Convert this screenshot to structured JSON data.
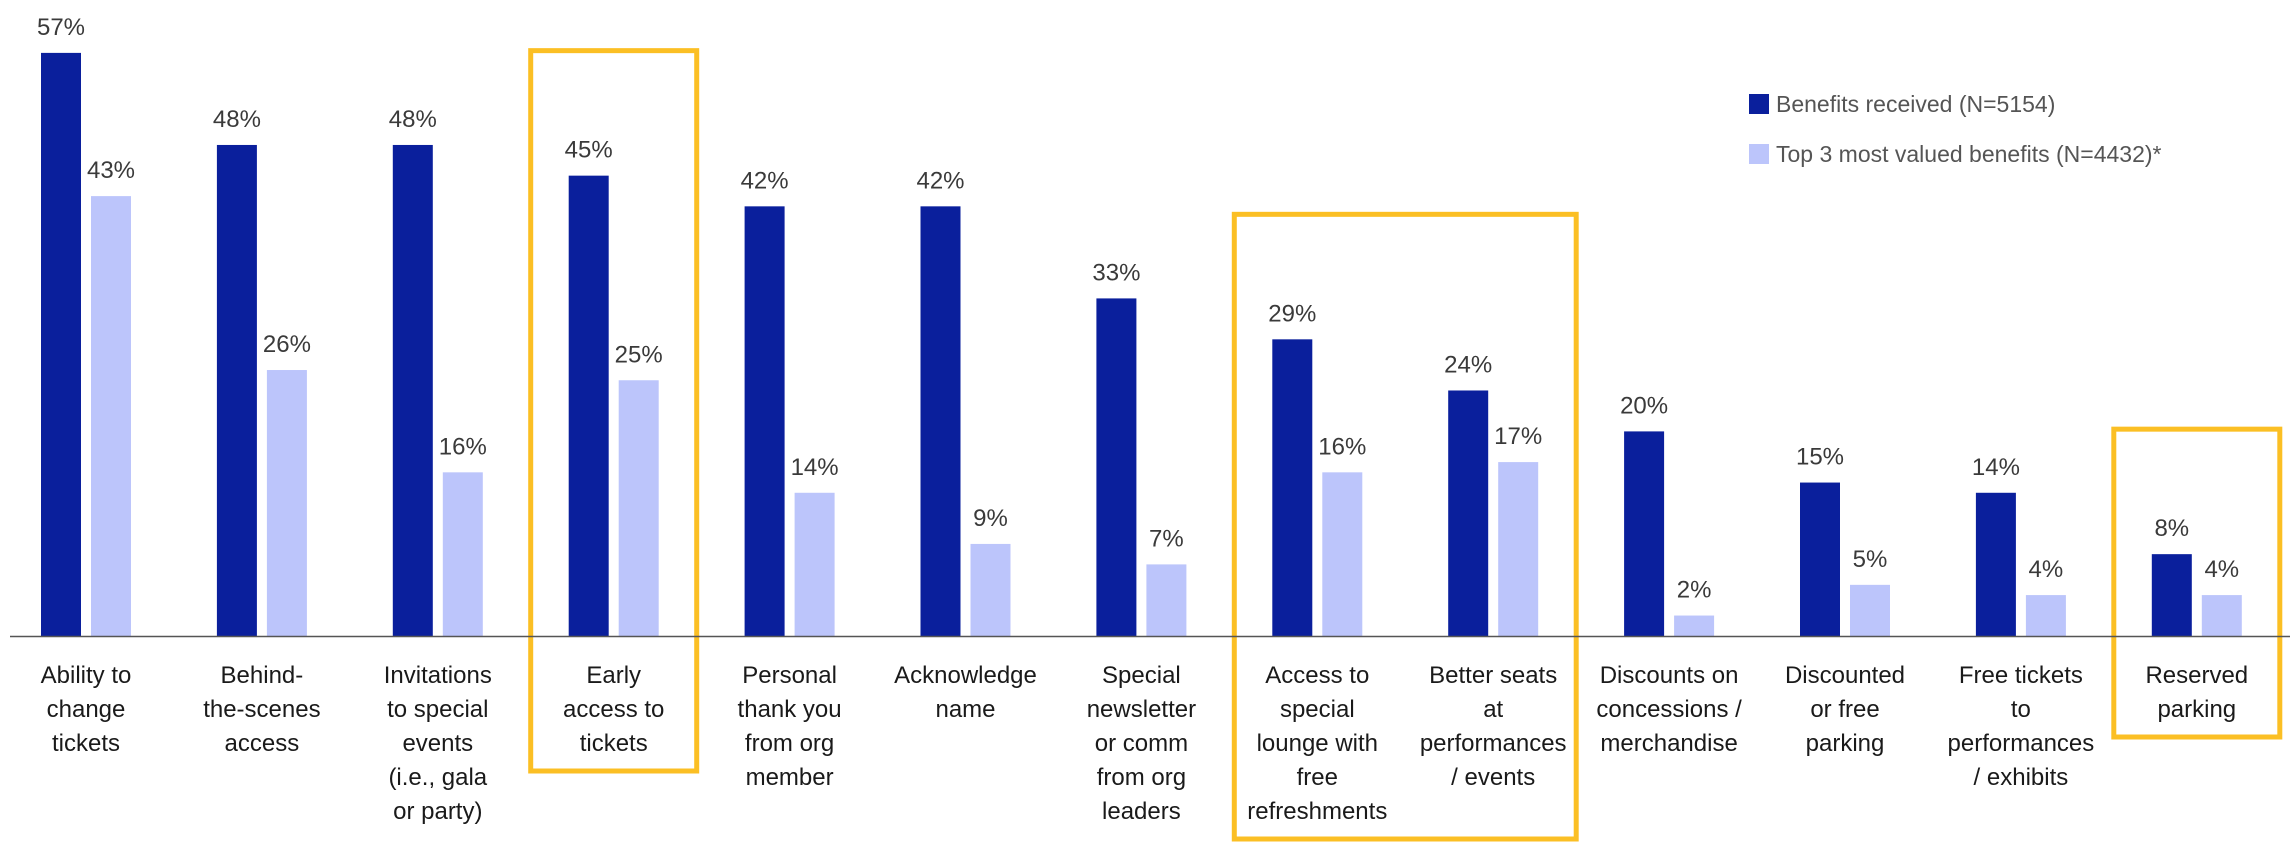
{
  "chart_data": {
    "type": "bar",
    "categories": [
      [
        "Ability to",
        "change",
        "tickets"
      ],
      [
        "Behind-",
        "the-scenes",
        "access"
      ],
      [
        "Invitations",
        "to special",
        "events",
        "(i.e., gala",
        "or party)"
      ],
      [
        "Early",
        "access to",
        "tickets"
      ],
      [
        "Personal",
        "thank you",
        "from org",
        "member"
      ],
      [
        "Acknowledge",
        "name"
      ],
      [
        "Special",
        "newsletter",
        "or comm",
        "from org",
        "leaders"
      ],
      [
        "Access to",
        "special",
        "lounge with",
        "free",
        "refreshments"
      ],
      [
        "Better seats",
        "at",
        "performances",
        "/ events"
      ],
      [
        "Discounts on",
        "concessions /",
        "merchandise"
      ],
      [
        "Discounted",
        "or free",
        "parking"
      ],
      [
        "Free tickets",
        "to",
        "performances",
        "/ exhibits"
      ],
      [
        "Reserved",
        "parking"
      ]
    ],
    "series": [
      {
        "name": "Benefits received (N=5154)",
        "color": "#0a1f9c",
        "values": [
          57,
          48,
          48,
          45,
          42,
          42,
          33,
          29,
          24,
          20,
          15,
          14,
          8
        ],
        "labels": [
          "57%",
          "48%",
          "48%",
          "45%",
          "42%",
          "42%",
          "33%",
          "29%",
          "24%",
          "20%",
          "15%",
          "14%",
          "8%"
        ]
      },
      {
        "name": "Top 3 most valued benefits (N=4432)*",
        "color": "#bcc5fb",
        "values": [
          43,
          26,
          16,
          25,
          14,
          9,
          7,
          16,
          17,
          2,
          5,
          4,
          4
        ],
        "labels": [
          "43%",
          "26%",
          "16%",
          "25%",
          "14%",
          "9%",
          "7%",
          "16%",
          "17%",
          "2%",
          "5%",
          "4%",
          "4%"
        ]
      }
    ],
    "ylim": [
      0,
      60
    ],
    "grid": false,
    "legend": "top-right",
    "highlight_color": "#fbbf24",
    "highlight_groups": [
      [
        3,
        3
      ],
      [
        7,
        8
      ],
      [
        12,
        12
      ]
    ]
  }
}
